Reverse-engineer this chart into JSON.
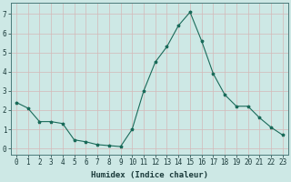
{
  "x": [
    0,
    1,
    2,
    3,
    4,
    5,
    6,
    7,
    8,
    9,
    10,
    11,
    12,
    13,
    14,
    15,
    16,
    17,
    18,
    19,
    20,
    21,
    22,
    23
  ],
  "y": [
    2.4,
    2.1,
    1.4,
    1.4,
    1.3,
    0.45,
    0.35,
    0.2,
    0.15,
    0.1,
    1.0,
    3.0,
    4.5,
    5.3,
    6.4,
    7.1,
    5.6,
    3.9,
    2.8,
    2.2,
    2.2,
    1.6,
    1.1,
    0.7
  ],
  "line_color": "#1a6b5a",
  "marker": "*",
  "marker_size": 2.5,
  "bg_color": "#cde8e5",
  "grid_color": "#b8d4d2",
  "xlabel": "Humidex (Indice chaleur)",
  "xlim": [
    -0.5,
    23.5
  ],
  "ylim": [
    -0.3,
    7.6
  ],
  "yticks": [
    0,
    1,
    2,
    3,
    4,
    5,
    6,
    7
  ],
  "xticks": [
    0,
    1,
    2,
    3,
    4,
    5,
    6,
    7,
    8,
    9,
    10,
    11,
    12,
    13,
    14,
    15,
    16,
    17,
    18,
    19,
    20,
    21,
    22,
    23
  ],
  "tick_fontsize": 5.5,
  "xlabel_fontsize": 6.5
}
